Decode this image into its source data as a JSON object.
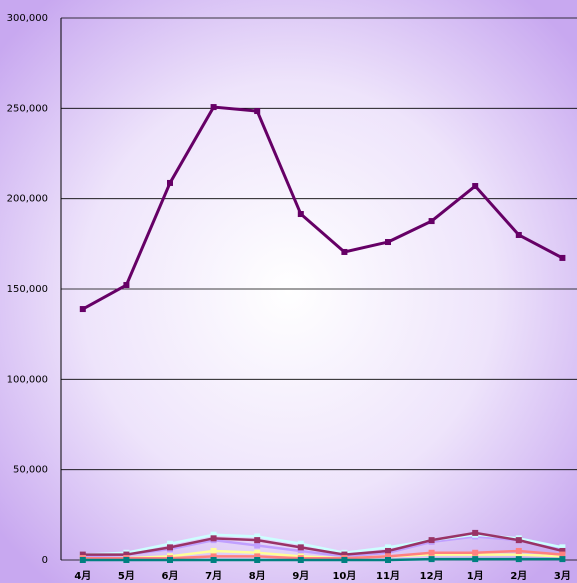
{
  "chart_data": {
    "type": "line",
    "categories": [
      "4月",
      "5月",
      "6月",
      "7月",
      "8月",
      "9月",
      "10月",
      "11月",
      "12月",
      "1月",
      "2月",
      "3月"
    ],
    "series": [
      {
        "color": "#c0a0ff",
        "values": [
          2000,
          3000,
          6000,
          11000,
          8000,
          5000,
          2000,
          4000,
          10000,
          13000,
          11000,
          6000
        ]
      },
      {
        "color": "#ccffff",
        "values": [
          3000,
          4000,
          9000,
          14000,
          13000,
          9000,
          4000,
          7000,
          11000,
          14000,
          12000,
          7000
        ]
      },
      {
        "color": "#993366",
        "values": [
          3000,
          3000,
          7000,
          12000,
          11000,
          7000,
          3000,
          5000,
          11000,
          15000,
          11000,
          5000
        ]
      },
      {
        "color": "#ffff99",
        "values": [
          1000,
          1000,
          2000,
          5000,
          4000,
          2000,
          1000,
          2000,
          3000,
          3000,
          3000,
          2000
        ]
      },
      {
        "color": "#ff8080",
        "values": [
          1000,
          1000,
          1000,
          2000,
          2000,
          1000,
          1000,
          2000,
          4000,
          4000,
          5000,
          3000
        ]
      },
      {
        "color": "#008080",
        "values": [
          0,
          0,
          0,
          0,
          0,
          0,
          0,
          0,
          500,
          500,
          500,
          500
        ]
      },
      {
        "color": "#660066",
        "values": [
          138900,
          152200,
          208700,
          250700,
          248500,
          191500,
          170500,
          176000,
          187600,
          207000,
          179900,
          167200
        ]
      }
    ],
    "ylim": [
      0,
      300000
    ],
    "yticks": [
      0,
      {
        "value": 50000,
        "label": "50,000"
      },
      {
        "value": 100000,
        "label": "100,000"
      },
      {
        "value": 150000,
        "label": "150,000"
      },
      {
        "value": 200000,
        "label": "200,000"
      },
      {
        "value": 250000,
        "label": "250,000"
      },
      {
        "value": 300000,
        "label": "300,000"
      }
    ],
    "grid": true
  }
}
